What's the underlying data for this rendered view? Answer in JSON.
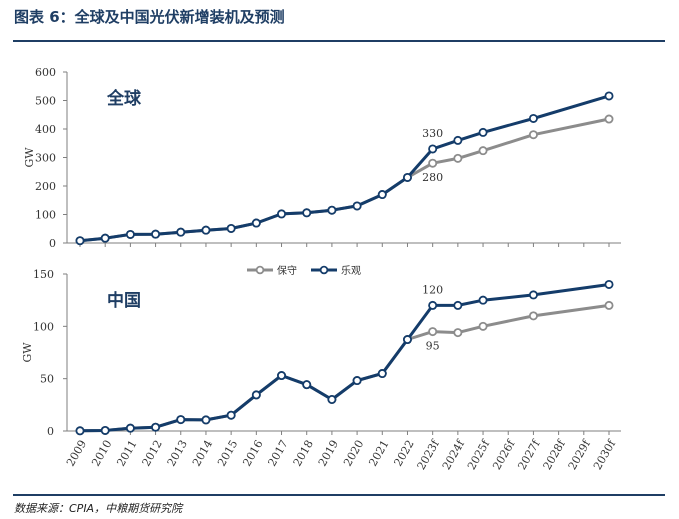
{
  "title": "图表 6：全球及中国光伏新增装机及预测",
  "source": "数据来源：CPIA，中粮期货研究院",
  "colors": {
    "accent": "#1f3e64",
    "conservative": "#8c8c8c",
    "optimistic": "#143c6a"
  },
  "chart_data": [
    {
      "type": "line",
      "title": "全球",
      "ylabel": "GW",
      "ylim": [
        0,
        600
      ],
      "yticks": [
        0,
        100,
        200,
        300,
        400,
        500,
        600
      ],
      "grid": false,
      "x": [
        2009,
        2010,
        2011,
        2012,
        2013,
        2014,
        2015,
        2016,
        2017,
        2018,
        2019,
        2020,
        2021,
        2022,
        2023,
        2024,
        2025,
        2027,
        2030
      ],
      "series": [
        {
          "name": "保守",
          "color": "#8c8c8c",
          "values": [
            8,
            17,
            30,
            31,
            38,
            45,
            51,
            70,
            102,
            106,
            115,
            130,
            170,
            230,
            280,
            297,
            324,
            380,
            435
          ]
        },
        {
          "name": "乐观",
          "color": "#143c6a",
          "values": [
            8,
            17,
            30,
            31,
            38,
            45,
            51,
            70,
            102,
            106,
            115,
            130,
            170,
            230,
            330,
            360,
            388,
            437,
            516
          ]
        }
      ],
      "annotations": [
        {
          "text": "330",
          "x": 2023,
          "y": 330,
          "position": "above"
        },
        {
          "text": "280",
          "x": 2023,
          "y": 280,
          "position": "below"
        }
      ]
    },
    {
      "type": "line",
      "title": "中国",
      "ylabel": "GW",
      "ylim": [
        0,
        150
      ],
      "yticks": [
        0,
        50,
        100,
        150
      ],
      "grid": false,
      "x": [
        2009,
        2010,
        2011,
        2012,
        2013,
        2014,
        2015,
        2016,
        2017,
        2018,
        2019,
        2020,
        2021,
        2022,
        2023,
        2024,
        2025,
        2027,
        2030
      ],
      "series": [
        {
          "name": "保守",
          "color": "#8c8c8c",
          "values": [
            0.2,
            0.5,
            2.7,
            3.6,
            10.9,
            10.6,
            15.1,
            34.5,
            53,
            44.3,
            30.1,
            48.2,
            54.9,
            87.4,
            95,
            94,
            100,
            110,
            120
          ]
        },
        {
          "name": "乐观",
          "color": "#143c6a",
          "values": [
            0.2,
            0.5,
            2.7,
            3.6,
            10.9,
            10.6,
            15.1,
            34.5,
            53,
            44.3,
            30.1,
            48.2,
            54.9,
            87.4,
            120,
            120,
            125,
            130,
            140
          ]
        }
      ],
      "annotations": [
        {
          "text": "120",
          "x": 2023,
          "y": 120,
          "position": "above"
        },
        {
          "text": "95",
          "x": 2023,
          "y": 95,
          "position": "below"
        }
      ]
    }
  ],
  "legend": {
    "placement": "between-panels",
    "items": [
      "保守",
      "乐观"
    ]
  },
  "x_tick_labels": [
    "2009",
    "2010",
    "2011",
    "2012",
    "2013",
    "2014",
    "2015",
    "2016",
    "2017",
    "2018",
    "2019",
    "2020",
    "2021",
    "2022",
    "2023f",
    "2024f",
    "2025f",
    "2026f",
    "2027f",
    "2028f",
    "2029f",
    "2030f"
  ],
  "x_tick_values": [
    2009,
    2010,
    2011,
    2012,
    2013,
    2014,
    2015,
    2016,
    2017,
    2018,
    2019,
    2020,
    2021,
    2022,
    2023,
    2024,
    2025,
    2026,
    2027,
    2028,
    2029,
    2030
  ]
}
